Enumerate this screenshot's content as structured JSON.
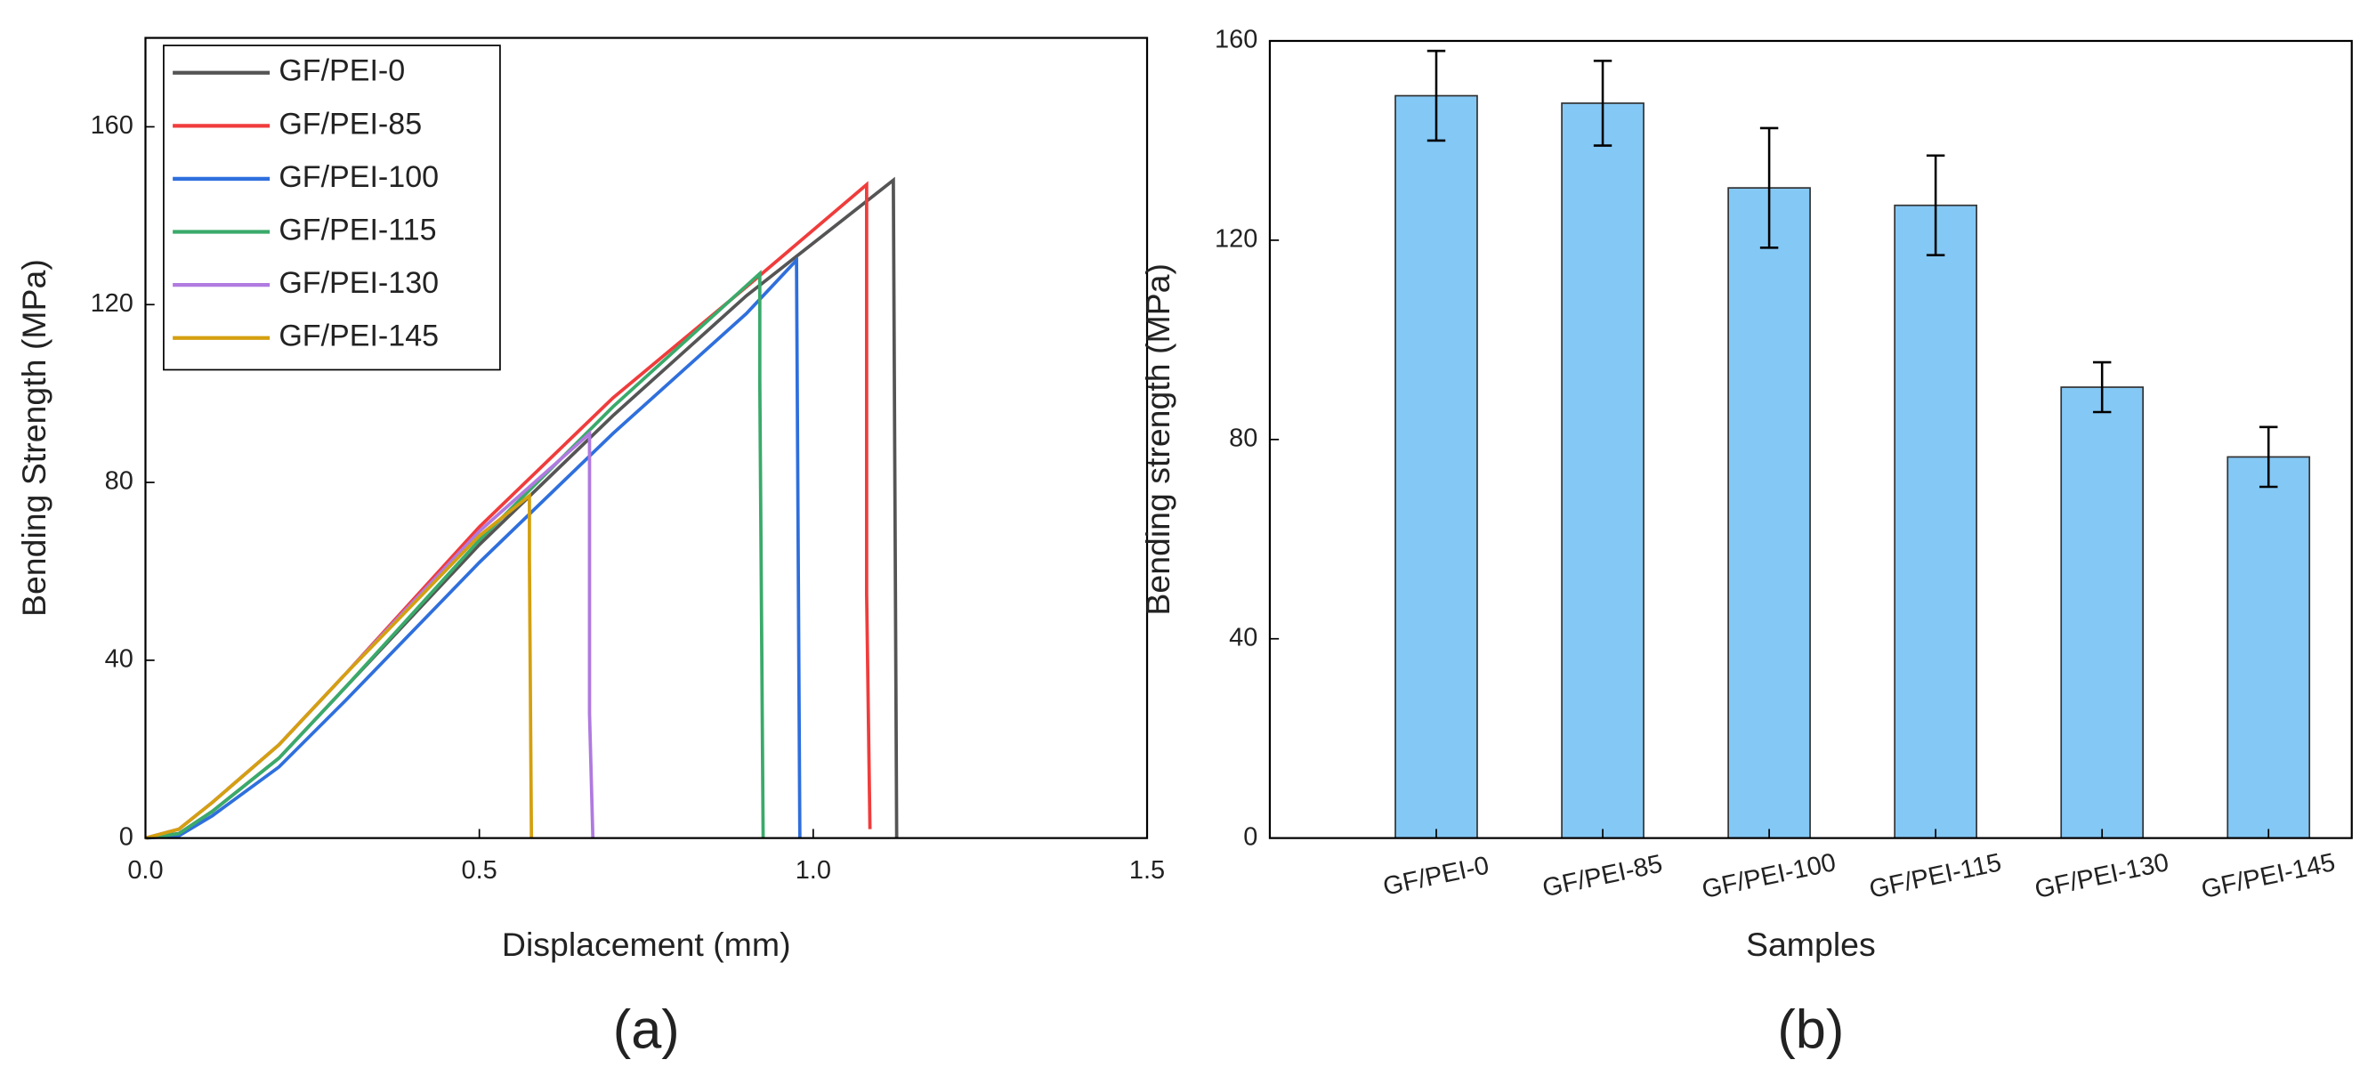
{
  "chart_data": [
    {
      "type": "line",
      "caption": "(a)",
      "x_label": "Displacement (mm)",
      "y_label": "Bending Strength (MPa)",
      "xlim": [
        0,
        1.5
      ],
      "xticks": [
        {
          "value": 0,
          "label": "0.0"
        },
        0.5,
        {
          "value": 1,
          "label": "1.0"
        },
        1.5
      ],
      "ylim": [
        0,
        180
      ],
      "yticks": [
        0,
        40,
        80,
        120,
        160
      ],
      "legend": "upper-left",
      "series": [
        {
          "name": "GF/PEI-0",
          "color": "#555555",
          "x": [
            0,
            0.05,
            0.1,
            0.2,
            0.3,
            0.5,
            0.7,
            0.9,
            1.12,
            1.125
          ],
          "values": [
            0,
            1,
            6,
            18,
            34,
            66,
            95,
            122,
            148,
            0
          ]
        },
        {
          "name": "GF/PEI-85",
          "color": "#f03c3c",
          "x": [
            0,
            0.05,
            0.1,
            0.2,
            0.3,
            0.5,
            0.7,
            0.9,
            1.08,
            1.08,
            1.085
          ],
          "values": [
            0,
            2,
            8,
            21,
            37,
            70,
            99,
            124,
            147,
            55,
            2
          ]
        },
        {
          "name": "GF/PEI-100",
          "color": "#2f6fdd",
          "x": [
            0,
            0.05,
            0.1,
            0.2,
            0.3,
            0.5,
            0.7,
            0.9,
            0.975,
            0.98
          ],
          "values": [
            0,
            0.5,
            5,
            16,
            31,
            62,
            91,
            118,
            130,
            0
          ]
        },
        {
          "name": "GF/PEI-115",
          "color": "#3aaa6a",
          "x": [
            0,
            0.05,
            0.1,
            0.2,
            0.3,
            0.5,
            0.7,
            0.92,
            0.92,
            0.925
          ],
          "values": [
            0,
            1,
            6,
            18,
            34,
            67,
            97,
            127,
            103,
            0
          ]
        },
        {
          "name": "GF/PEI-130",
          "color": "#b07ae0",
          "x": [
            0,
            0.05,
            0.1,
            0.2,
            0.3,
            0.5,
            0.665,
            0.665,
            0.67
          ],
          "values": [
            0,
            2,
            8,
            21,
            37,
            69,
            91,
            28,
            0
          ]
        },
        {
          "name": "GF/PEI-145",
          "color": "#d4a010",
          "x": [
            0,
            0.05,
            0.1,
            0.2,
            0.3,
            0.5,
            0.575,
            0.575,
            0.578
          ],
          "values": [
            0,
            2,
            8,
            21,
            37,
            68,
            77,
            63,
            0
          ]
        }
      ]
    },
    {
      "type": "bar",
      "caption": "(b)",
      "x_label": "Samples",
      "y_label": "Bending strength (MPa)",
      "categories": [
        "GF/PEI-0",
        "GF/PEI-85",
        "GF/PEI-100",
        "GF/PEI-115",
        "GF/PEI-130",
        "GF/PEI-145"
      ],
      "values": [
        149,
        147.5,
        130.5,
        127,
        90.5,
        76.5
      ],
      "errors": [
        9,
        8.5,
        12,
        10,
        5,
        6
      ],
      "color": "#84c8f5",
      "ylim": [
        0,
        160
      ],
      "yticks": [
        0,
        40,
        80,
        120,
        160
      ]
    }
  ]
}
